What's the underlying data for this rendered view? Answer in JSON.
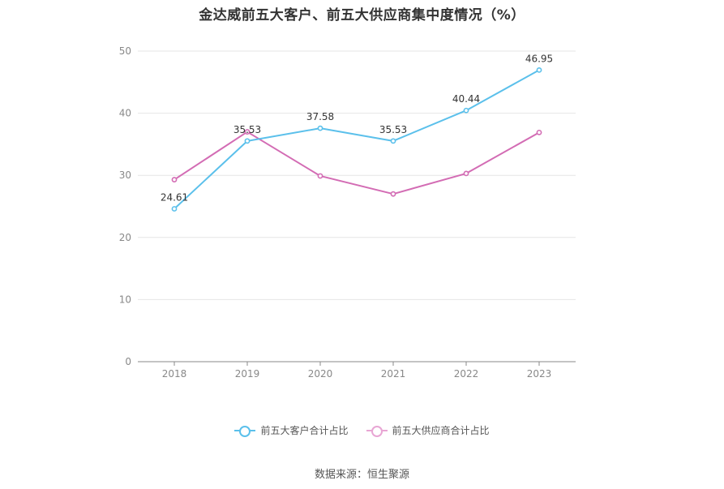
{
  "chart_data": {
    "type": "line",
    "title": "金达威前五大客户、前五大供应商集中度情况（%）",
    "xlabel": "",
    "ylabel": "",
    "categories": [
      "2018",
      "2019",
      "2020",
      "2021",
      "2022",
      "2023"
    ],
    "ylim": [
      0,
      50
    ],
    "yticks": [
      0,
      10,
      20,
      30,
      40,
      50
    ],
    "grid": true,
    "legend_position": "bottom",
    "series": [
      {
        "name": "前五大客户合计占比",
        "color": "#5bc0eb",
        "values": [
          24.61,
          35.53,
          37.58,
          35.53,
          40.44,
          46.95
        ],
        "data_labels": [
          "24.61",
          "35.53",
          "37.58",
          "35.53",
          "40.44",
          "46.95"
        ]
      },
      {
        "name": "前五大供应商合计占比",
        "color": "#d36cb4",
        "legend_color": "#e8a6d4",
        "values": [
          29.3,
          37.0,
          29.9,
          27.0,
          30.3,
          36.9
        ]
      }
    ]
  },
  "source": "数据来源：恒生聚源"
}
